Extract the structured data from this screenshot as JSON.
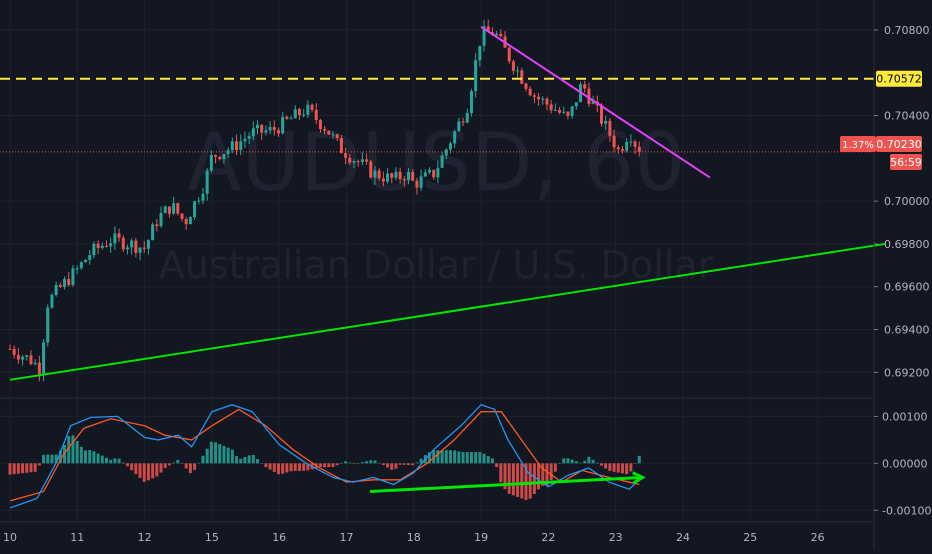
{
  "watermark": {
    "symbol": "AUDUSD, 60",
    "name": "Australian Dollar / U.S. Dollar"
  },
  "price_axis": {
    "ticks": [
      "0.70800",
      "0.70400",
      "0.70000",
      "0.69800",
      "0.69600",
      "0.69400",
      "0.69200"
    ],
    "tick_values": [
      0.708,
      0.704,
      0.7,
      0.698,
      0.696,
      0.694,
      0.692
    ],
    "range": [
      0.6908,
      0.7094
    ]
  },
  "macd_axis": {
    "ticks": [
      "0.00100",
      "0.00000",
      "-0.00100"
    ],
    "tick_values": [
      0.001,
      0.0,
      -0.001
    ],
    "range": [
      -0.00125,
      0.00135
    ]
  },
  "time_axis": {
    "ticks": [
      "10",
      "11",
      "12",
      "15",
      "16",
      "17",
      "18",
      "19",
      "22",
      "23",
      "24",
      "25",
      "26"
    ]
  },
  "badges": {
    "level_label": "0.70572",
    "last_price_label": "0.70230",
    "change_label": "1.37%",
    "countdown_label": "56:59"
  },
  "colors": {
    "background": "#131722",
    "grid": "#1e222d",
    "up_candle": "#26a69a",
    "down_candle": "#ef5350",
    "support_line": "#00e600",
    "resistance_line": "#e040fb",
    "level_line": "#ffeb3b",
    "macd_line": "#2196f3",
    "signal_line": "#ff5722",
    "hist_pos": "#26a69a",
    "hist_neg": "#ef5350",
    "arrow": "#00e600"
  },
  "chart_data": {
    "type": "candlestick",
    "symbol": "AUDUSD",
    "interval": "60",
    "x_categories": [
      "10",
      "11",
      "12",
      "15",
      "16",
      "17",
      "18",
      "19",
      "22",
      "23",
      "24",
      "25",
      "26"
    ],
    "price_path": [
      [
        0,
        0.6931
      ],
      [
        0.3,
        0.6926
      ],
      [
        0.45,
        0.6922
      ],
      [
        0.55,
        0.6952
      ],
      [
        0.7,
        0.6958
      ],
      [
        1.0,
        0.6968
      ],
      [
        1.2,
        0.6976
      ],
      [
        1.5,
        0.6982
      ],
      [
        1.8,
        0.698
      ],
      [
        2.0,
        0.6978
      ],
      [
        2.2,
        0.6992
      ],
      [
        2.4,
        0.6998
      ],
      [
        2.6,
        0.699
      ],
      [
        2.9,
        0.7009
      ],
      [
        3.0,
        0.7021
      ],
      [
        3.3,
        0.7025
      ],
      [
        3.6,
        0.7032
      ],
      [
        3.9,
        0.7033
      ],
      [
        4.2,
        0.7039
      ],
      [
        4.4,
        0.7043
      ],
      [
        4.7,
        0.7034
      ],
      [
        4.9,
        0.7025
      ],
      [
        5.1,
        0.702
      ],
      [
        5.4,
        0.7013
      ],
      [
        5.7,
        0.701
      ],
      [
        5.9,
        0.7013
      ],
      [
        6.0,
        0.7008
      ],
      [
        6.3,
        0.7013
      ],
      [
        6.7,
        0.7038
      ],
      [
        6.8,
        0.7045
      ],
      [
        7.0,
        0.7078
      ],
      [
        7.2,
        0.7079
      ],
      [
        7.4,
        0.7068
      ],
      [
        7.6,
        0.7058
      ],
      [
        7.8,
        0.7049
      ],
      [
        8.1,
        0.7043
      ],
      [
        8.3,
        0.7038
      ],
      [
        8.5,
        0.7055
      ],
      [
        8.7,
        0.7043
      ],
      [
        8.9,
        0.7032
      ],
      [
        9.05,
        0.7023
      ],
      [
        9.2,
        0.7033
      ],
      [
        9.35,
        0.7023
      ]
    ],
    "horizontal_level": 0.70572,
    "last_price": 0.7023,
    "change_pct": "1.37%",
    "trendlines": [
      {
        "name": "support",
        "from": [
          0.0,
          0.69165
        ],
        "to": [
          13.0,
          0.698
        ]
      },
      {
        "name": "resistance",
        "from": [
          7.0,
          0.70815
        ],
        "to": [
          10.4,
          0.7011
        ]
      }
    ],
    "macd": {
      "macd_path": [
        [
          0,
          -0.00095
        ],
        [
          0.4,
          -0.00075
        ],
        [
          0.7,
          5e-05
        ],
        [
          0.9,
          0.0008
        ],
        [
          1.2,
          0.00098
        ],
        [
          1.6,
          0.001
        ],
        [
          2.0,
          0.00055
        ],
        [
          2.2,
          0.0005
        ],
        [
          2.5,
          0.0006
        ],
        [
          2.7,
          0.00035
        ],
        [
          3.0,
          0.0011
        ],
        [
          3.3,
          0.00125
        ],
        [
          3.6,
          0.0011
        ],
        [
          4.0,
          0.0004
        ],
        [
          4.4,
          0.0
        ],
        [
          4.8,
          -0.0003
        ],
        [
          5.1,
          -0.0004
        ],
        [
          5.4,
          -0.0003
        ],
        [
          5.7,
          -0.00045
        ],
        [
          6.0,
          -0.0002
        ],
        [
          6.3,
          0.0003
        ],
        [
          6.7,
          0.0008
        ],
        [
          7.0,
          0.00125
        ],
        [
          7.2,
          0.00115
        ],
        [
          7.4,
          0.0005
        ],
        [
          7.7,
          -0.0002
        ],
        [
          8.0,
          -0.0005
        ],
        [
          8.3,
          -0.00025
        ],
        [
          8.6,
          -0.0001
        ],
        [
          8.9,
          -0.0004
        ],
        [
          9.2,
          -0.00055
        ],
        [
          9.35,
          -0.00035
        ]
      ],
      "signal_path": [
        [
          0,
          -0.0008
        ],
        [
          0.5,
          -0.0006
        ],
        [
          0.8,
          0.0002
        ],
        [
          1.1,
          0.00075
        ],
        [
          1.5,
          0.00095
        ],
        [
          2.0,
          0.0008
        ],
        [
          2.3,
          0.0006
        ],
        [
          2.7,
          0.0005
        ],
        [
          3.0,
          0.0008
        ],
        [
          3.4,
          0.00115
        ],
        [
          3.8,
          0.0008
        ],
        [
          4.2,
          0.0003
        ],
        [
          4.6,
          -0.0001
        ],
        [
          5.0,
          -0.0004
        ],
        [
          5.4,
          -0.00035
        ],
        [
          5.8,
          -0.00035
        ],
        [
          6.2,
          0.0
        ],
        [
          6.6,
          0.0005
        ],
        [
          7.0,
          0.0011
        ],
        [
          7.3,
          0.0011
        ],
        [
          7.6,
          0.0005
        ],
        [
          7.9,
          -0.0001
        ],
        [
          8.2,
          -0.0004
        ],
        [
          8.5,
          -0.00015
        ],
        [
          8.9,
          -0.0003
        ],
        [
          9.35,
          -0.00045
        ]
      ],
      "arrow": {
        "from": [
          5.35,
          -0.0006
        ],
        "to": [
          9.4,
          -0.0003
        ]
      }
    },
    "grid": true
  }
}
